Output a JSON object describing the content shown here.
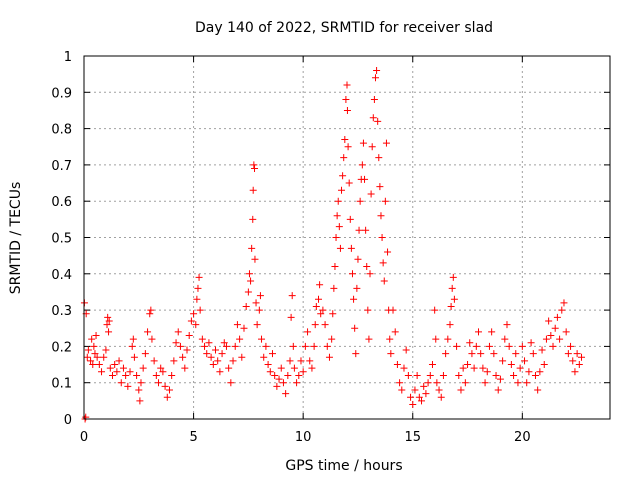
{
  "chart_data": {
    "type": "scatter",
    "title": "Day 140 of 2022, SRMTID for receiver slad",
    "xlabel": "GPS time / hours",
    "ylabel": "SRMTID / TECUs",
    "xlim": [
      0,
      24
    ],
    "ylim": [
      0,
      1
    ],
    "x_ticks": [
      0,
      5,
      10,
      15,
      20
    ],
    "x_tick_labels": [
      "0",
      "5",
      "10",
      "15",
      "20"
    ],
    "y_ticks": [
      0,
      0.1,
      0.2,
      0.3,
      0.4,
      0.5,
      0.6,
      0.7,
      0.8,
      0.9,
      1
    ],
    "y_tick_labels": [
      "0",
      "0.1",
      "0.2",
      "0.3",
      "0.4",
      "0.5",
      "0.6",
      "0.7",
      "0.8",
      "0.9",
      "1"
    ],
    "grid": true,
    "marker": "plus",
    "marker_color": "#ff0000",
    "series": [
      {
        "name": "SRMTID",
        "points": [
          [
            0.02,
            0.32
          ],
          [
            0.05,
            0.0
          ],
          [
            0.08,
            0.005
          ],
          [
            0.1,
            0.29
          ],
          [
            0.15,
            0.17
          ],
          [
            0.2,
            0.19
          ],
          [
            0.3,
            0.16
          ],
          [
            0.35,
            0.22
          ],
          [
            0.4,
            0.15
          ],
          [
            0.45,
            0.2
          ],
          [
            0.5,
            0.18
          ],
          [
            0.55,
            0.23
          ],
          [
            0.6,
            0.17
          ],
          [
            0.7,
            0.15
          ],
          [
            0.8,
            0.13
          ],
          [
            0.9,
            0.17
          ],
          [
            1.0,
            0.19
          ],
          [
            1.05,
            0.26
          ],
          [
            1.08,
            0.28
          ],
          [
            1.12,
            0.24
          ],
          [
            1.15,
            0.27
          ],
          [
            1.2,
            0.14
          ],
          [
            1.3,
            0.12
          ],
          [
            1.4,
            0.15
          ],
          [
            1.5,
            0.13
          ],
          [
            1.6,
            0.16
          ],
          [
            1.7,
            0.1
          ],
          [
            1.8,
            0.14
          ],
          [
            1.9,
            0.12
          ],
          [
            2.0,
            0.09
          ],
          [
            2.1,
            0.13
          ],
          [
            2.2,
            0.2
          ],
          [
            2.25,
            0.22
          ],
          [
            2.3,
            0.17
          ],
          [
            2.4,
            0.12
          ],
          [
            2.5,
            0.08
          ],
          [
            2.55,
            0.05
          ],
          [
            2.6,
            0.1
          ],
          [
            2.7,
            0.14
          ],
          [
            2.8,
            0.18
          ],
          [
            2.9,
            0.24
          ],
          [
            3.0,
            0.29
          ],
          [
            3.05,
            0.3
          ],
          [
            3.1,
            0.22
          ],
          [
            3.2,
            0.16
          ],
          [
            3.3,
            0.12
          ],
          [
            3.4,
            0.1
          ],
          [
            3.5,
            0.14
          ],
          [
            3.6,
            0.13
          ],
          [
            3.7,
            0.09
          ],
          [
            3.8,
            0.06
          ],
          [
            3.9,
            0.08
          ],
          [
            4.0,
            0.12
          ],
          [
            4.1,
            0.16
          ],
          [
            4.2,
            0.21
          ],
          [
            4.3,
            0.24
          ],
          [
            4.4,
            0.2
          ],
          [
            4.5,
            0.17
          ],
          [
            4.6,
            0.14
          ],
          [
            4.7,
            0.19
          ],
          [
            4.8,
            0.23
          ],
          [
            4.9,
            0.27
          ],
          [
            5.0,
            0.29
          ],
          [
            5.1,
            0.26
          ],
          [
            5.15,
            0.33
          ],
          [
            5.2,
            0.36
          ],
          [
            5.25,
            0.39
          ],
          [
            5.3,
            0.3
          ],
          [
            5.4,
            0.22
          ],
          [
            5.5,
            0.2
          ],
          [
            5.6,
            0.18
          ],
          [
            5.7,
            0.21
          ],
          [
            5.8,
            0.17
          ],
          [
            5.9,
            0.15
          ],
          [
            6.0,
            0.19
          ],
          [
            6.1,
            0.16
          ],
          [
            6.2,
            0.13
          ],
          [
            6.3,
            0.18
          ],
          [
            6.4,
            0.21
          ],
          [
            6.5,
            0.2
          ],
          [
            6.6,
            0.14
          ],
          [
            6.7,
            0.1
          ],
          [
            6.8,
            0.16
          ],
          [
            6.9,
            0.2
          ],
          [
            7.0,
            0.26
          ],
          [
            7.1,
            0.22
          ],
          [
            7.2,
            0.17
          ],
          [
            7.3,
            0.25
          ],
          [
            7.4,
            0.31
          ],
          [
            7.5,
            0.35
          ],
          [
            7.55,
            0.4
          ],
          [
            7.6,
            0.38
          ],
          [
            7.65,
            0.47
          ],
          [
            7.7,
            0.55
          ],
          [
            7.72,
            0.63
          ],
          [
            7.75,
            0.7
          ],
          [
            7.78,
            0.69
          ],
          [
            7.8,
            0.44
          ],
          [
            7.85,
            0.32
          ],
          [
            7.9,
            0.26
          ],
          [
            8.0,
            0.3
          ],
          [
            8.05,
            0.34
          ],
          [
            8.1,
            0.22
          ],
          [
            8.2,
            0.17
          ],
          [
            8.3,
            0.2
          ],
          [
            8.4,
            0.15
          ],
          [
            8.5,
            0.13
          ],
          [
            8.6,
            0.18
          ],
          [
            8.7,
            0.12
          ],
          [
            8.8,
            0.09
          ],
          [
            8.9,
            0.11
          ],
          [
            9.0,
            0.14
          ],
          [
            9.1,
            0.1
          ],
          [
            9.2,
            0.07
          ],
          [
            9.3,
            0.12
          ],
          [
            9.4,
            0.16
          ],
          [
            9.45,
            0.28
          ],
          [
            9.5,
            0.34
          ],
          [
            9.55,
            0.2
          ],
          [
            9.6,
            0.14
          ],
          [
            9.7,
            0.1
          ],
          [
            9.8,
            0.12
          ],
          [
            9.9,
            0.16
          ],
          [
            10.0,
            0.13
          ],
          [
            10.1,
            0.2
          ],
          [
            10.2,
            0.24
          ],
          [
            10.3,
            0.16
          ],
          [
            10.4,
            0.14
          ],
          [
            10.5,
            0.2
          ],
          [
            10.55,
            0.26
          ],
          [
            10.6,
            0.31
          ],
          [
            10.7,
            0.33
          ],
          [
            10.75,
            0.37
          ],
          [
            10.8,
            0.29
          ],
          [
            10.9,
            0.3
          ],
          [
            11.0,
            0.26
          ],
          [
            11.1,
            0.2
          ],
          [
            11.2,
            0.17
          ],
          [
            11.3,
            0.22
          ],
          [
            11.35,
            0.29
          ],
          [
            11.4,
            0.36
          ],
          [
            11.45,
            0.42
          ],
          [
            11.5,
            0.5
          ],
          [
            11.55,
            0.56
          ],
          [
            11.6,
            0.6
          ],
          [
            11.65,
            0.53
          ],
          [
            11.7,
            0.47
          ],
          [
            11.75,
            0.63
          ],
          [
            11.8,
            0.67
          ],
          [
            11.85,
            0.72
          ],
          [
            11.9,
            0.77
          ],
          [
            11.95,
            0.88
          ],
          [
            12.0,
            0.92
          ],
          [
            12.02,
            0.85
          ],
          [
            12.05,
            0.75
          ],
          [
            12.1,
            0.65
          ],
          [
            12.15,
            0.55
          ],
          [
            12.2,
            0.47
          ],
          [
            12.25,
            0.4
          ],
          [
            12.3,
            0.33
          ],
          [
            12.35,
            0.25
          ],
          [
            12.4,
            0.18
          ],
          [
            12.45,
            0.36
          ],
          [
            12.5,
            0.44
          ],
          [
            12.55,
            0.52
          ],
          [
            12.6,
            0.6
          ],
          [
            12.65,
            0.66
          ],
          [
            12.7,
            0.7
          ],
          [
            12.75,
            0.76
          ],
          [
            12.8,
            0.66
          ],
          [
            12.85,
            0.52
          ],
          [
            12.9,
            0.42
          ],
          [
            12.95,
            0.3
          ],
          [
            13.0,
            0.22
          ],
          [
            13.05,
            0.4
          ],
          [
            13.1,
            0.62
          ],
          [
            13.15,
            0.75
          ],
          [
            13.2,
            0.83
          ],
          [
            13.25,
            0.88
          ],
          [
            13.3,
            0.94
          ],
          [
            13.35,
            0.96
          ],
          [
            13.4,
            0.82
          ],
          [
            13.45,
            0.72
          ],
          [
            13.5,
            0.64
          ],
          [
            13.55,
            0.56
          ],
          [
            13.6,
            0.5
          ],
          [
            13.65,
            0.43
          ],
          [
            13.7,
            0.38
          ],
          [
            13.75,
            0.6
          ],
          [
            13.8,
            0.76
          ],
          [
            13.85,
            0.46
          ],
          [
            13.9,
            0.3
          ],
          [
            13.95,
            0.22
          ],
          [
            14.0,
            0.18
          ],
          [
            14.1,
            0.3
          ],
          [
            14.2,
            0.24
          ],
          [
            14.3,
            0.15
          ],
          [
            14.4,
            0.1
          ],
          [
            14.5,
            0.08
          ],
          [
            14.6,
            0.14
          ],
          [
            14.7,
            0.19
          ],
          [
            14.8,
            0.12
          ],
          [
            14.9,
            0.06
          ],
          [
            15.0,
            0.04
          ],
          [
            15.1,
            0.08
          ],
          [
            15.2,
            0.12
          ],
          [
            15.3,
            0.06
          ],
          [
            15.4,
            0.05
          ],
          [
            15.5,
            0.09
          ],
          [
            15.6,
            0.07
          ],
          [
            15.7,
            0.1
          ],
          [
            15.8,
            0.12
          ],
          [
            15.9,
            0.15
          ],
          [
            16.0,
            0.3
          ],
          [
            16.05,
            0.22
          ],
          [
            16.1,
            0.1
          ],
          [
            16.2,
            0.08
          ],
          [
            16.3,
            0.06
          ],
          [
            16.4,
            0.12
          ],
          [
            16.5,
            0.18
          ],
          [
            16.6,
            0.22
          ],
          [
            16.7,
            0.26
          ],
          [
            16.75,
            0.31
          ],
          [
            16.8,
            0.36
          ],
          [
            16.85,
            0.39
          ],
          [
            16.9,
            0.33
          ],
          [
            17.0,
            0.2
          ],
          [
            17.1,
            0.12
          ],
          [
            17.2,
            0.08
          ],
          [
            17.3,
            0.14
          ],
          [
            17.4,
            0.1
          ],
          [
            17.5,
            0.15
          ],
          [
            17.6,
            0.21
          ],
          [
            17.7,
            0.18
          ],
          [
            17.8,
            0.14
          ],
          [
            17.9,
            0.2
          ],
          [
            18.0,
            0.24
          ],
          [
            18.1,
            0.18
          ],
          [
            18.2,
            0.14
          ],
          [
            18.3,
            0.1
          ],
          [
            18.4,
            0.13
          ],
          [
            18.5,
            0.2
          ],
          [
            18.6,
            0.24
          ],
          [
            18.7,
            0.18
          ],
          [
            18.8,
            0.12
          ],
          [
            18.9,
            0.08
          ],
          [
            19.0,
            0.11
          ],
          [
            19.1,
            0.16
          ],
          [
            19.2,
            0.22
          ],
          [
            19.3,
            0.26
          ],
          [
            19.4,
            0.2
          ],
          [
            19.5,
            0.15
          ],
          [
            19.6,
            0.12
          ],
          [
            19.7,
            0.18
          ],
          [
            19.8,
            0.1
          ],
          [
            19.9,
            0.14
          ],
          [
            20.0,
            0.2
          ],
          [
            20.1,
            0.16
          ],
          [
            20.2,
            0.1
          ],
          [
            20.3,
            0.13
          ],
          [
            20.4,
            0.21
          ],
          [
            20.5,
            0.18
          ],
          [
            20.6,
            0.12
          ],
          [
            20.7,
            0.08
          ],
          [
            20.8,
            0.13
          ],
          [
            20.9,
            0.19
          ],
          [
            21.0,
            0.15
          ],
          [
            21.1,
            0.22
          ],
          [
            21.2,
            0.27
          ],
          [
            21.3,
            0.23
          ],
          [
            21.4,
            0.2
          ],
          [
            21.5,
            0.25
          ],
          [
            21.6,
            0.28
          ],
          [
            21.7,
            0.22
          ],
          [
            21.8,
            0.3
          ],
          [
            21.9,
            0.32
          ],
          [
            22.0,
            0.24
          ],
          [
            22.1,
            0.18
          ],
          [
            22.2,
            0.2
          ],
          [
            22.3,
            0.16
          ],
          [
            22.4,
            0.13
          ],
          [
            22.5,
            0.18
          ],
          [
            22.6,
            0.15
          ],
          [
            22.7,
            0.17
          ]
        ]
      }
    ]
  }
}
